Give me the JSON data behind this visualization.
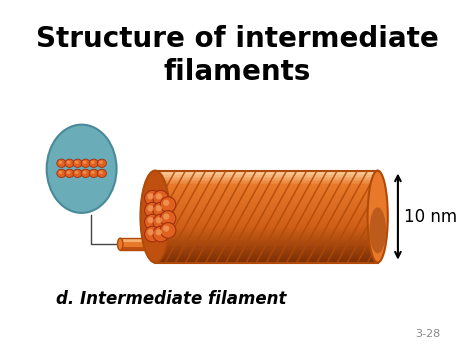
{
  "title": "Structure of intermediate\nfilaments",
  "title_fontsize": 20,
  "title_fontweight": "bold",
  "bg_color": "#ffffff",
  "filament_main": "#E8792A",
  "filament_dark": "#B04A08",
  "filament_light": "#F5B070",
  "filament_highlight": "#FAD0A0",
  "filament_shadow": "#7A2E05",
  "oval_bg": "#6AACB8",
  "oval_edge": "#4A8A98",
  "bead_color": "#E06020",
  "bead_dark": "#A03010",
  "bead_highlight": "#F5A060",
  "label_text": "d. Intermediate filament",
  "label_fontsize": 12,
  "nm_text": "10 nm",
  "nm_fontsize": 12,
  "slide_num": "3-28",
  "slide_fontsize": 8
}
